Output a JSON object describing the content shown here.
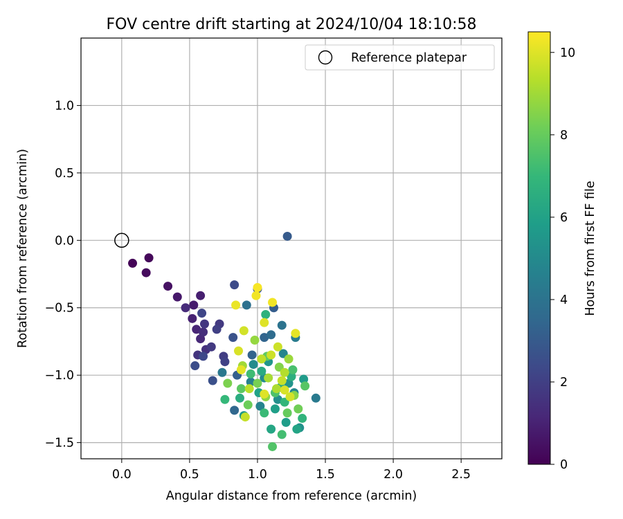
{
  "chart_data": {
    "type": "scatter",
    "title": "FOV centre drift starting at 2024/10/04 18:10:58",
    "xlabel": "Angular distance from reference (arcmin)",
    "ylabel": "Rotation from reference (arcmin)",
    "xlim": [
      -0.3,
      2.8
    ],
    "ylim": [
      -1.62,
      1.5
    ],
    "xticks": [
      0.0,
      0.5,
      1.0,
      1.5,
      2.0,
      2.5
    ],
    "xtick_labels": [
      "0.0",
      "0.5",
      "1.0",
      "1.5",
      "2.0",
      "2.5"
    ],
    "yticks": [
      1.0,
      0.5,
      0.0,
      -0.5,
      -1.0,
      -1.5
    ],
    "ytick_labels": [
      "1.0",
      "0.5",
      "0.0",
      "−0.5",
      "−1.0",
      "−1.5"
    ],
    "grid": true,
    "legend": {
      "placement": "top-right",
      "entries": [
        {
          "label": "Reference platepar",
          "marker": "open-circle"
        }
      ]
    },
    "reference_point": {
      "x": 0.0,
      "y": 0.0
    },
    "colorbar": {
      "label": "Hours from first FF file",
      "range": [
        0,
        10.5
      ],
      "ticks": [
        0,
        2,
        4,
        6,
        8,
        10
      ],
      "tick_labels": [
        "0",
        "2",
        "4",
        "6",
        "8",
        "10"
      ],
      "colormap": "viridis",
      "colors": [
        "#440154",
        "#482878",
        "#3e4989",
        "#31688e",
        "#26828e",
        "#1f9e89",
        "#35b779",
        "#6ece58",
        "#b5de2b",
        "#fde725"
      ]
    },
    "series": [
      {
        "points": [
          [
            0.08,
            -0.17,
            0.1
          ],
          [
            0.2,
            -0.13,
            0.2
          ],
          [
            0.18,
            -0.24,
            0.3
          ],
          [
            0.34,
            -0.34,
            0.5
          ],
          [
            0.41,
            -0.42,
            0.7
          ],
          [
            0.53,
            -0.48,
            0.8
          ],
          [
            0.58,
            -0.41,
            0.9
          ],
          [
            0.52,
            -0.58,
            1.0
          ],
          [
            0.55,
            -0.66,
            1.1
          ],
          [
            0.58,
            -0.73,
            1.2
          ],
          [
            0.47,
            -0.5,
            1.3
          ],
          [
            0.6,
            -0.68,
            1.4
          ],
          [
            0.62,
            -0.81,
            1.5
          ],
          [
            0.56,
            -0.85,
            1.6
          ],
          [
            0.61,
            -0.62,
            1.7
          ],
          [
            0.66,
            -0.79,
            1.8
          ],
          [
            0.72,
            -0.62,
            1.8
          ],
          [
            0.75,
            -0.86,
            1.9
          ],
          [
            0.7,
            -0.66,
            2.0
          ],
          [
            0.76,
            -0.9,
            2.1
          ],
          [
            0.59,
            -0.54,
            2.2
          ],
          [
            0.83,
            -0.33,
            2.4
          ],
          [
            0.54,
            -0.93,
            2.5
          ],
          [
            0.67,
            -1.04,
            2.6
          ],
          [
            0.82,
            -0.72,
            2.7
          ],
          [
            0.6,
            -0.86,
            2.3
          ],
          [
            1.0,
            -0.36,
            2.8
          ],
          [
            1.22,
            0.03,
            3.0
          ],
          [
            1.12,
            -0.5,
            3.1
          ],
          [
            0.85,
            -1.0,
            3.2
          ],
          [
            0.96,
            -0.85,
            3.3
          ],
          [
            1.05,
            -0.72,
            3.4
          ],
          [
            0.83,
            -1.26,
            3.5
          ],
          [
            1.1,
            -0.7,
            3.7
          ],
          [
            0.92,
            -0.48,
            3.9
          ],
          [
            1.18,
            -0.63,
            4.0
          ],
          [
            0.74,
            -0.98,
            4.2
          ],
          [
            1.43,
            -1.17,
            4.3
          ],
          [
            1.28,
            -0.72,
            4.4
          ],
          [
            0.95,
            -1.05,
            4.6
          ],
          [
            1.02,
            -1.23,
            4.7
          ],
          [
            1.19,
            -0.84,
            4.8
          ],
          [
            1.27,
            -1.13,
            4.9
          ],
          [
            1.05,
            -1.02,
            5.0
          ],
          [
            0.97,
            -0.92,
            5.1
          ],
          [
            1.15,
            -1.18,
            5.2
          ],
          [
            1.31,
            -1.39,
            5.3
          ],
          [
            1.23,
            -1.06,
            5.4
          ],
          [
            1.08,
            -0.9,
            5.5
          ],
          [
            0.9,
            -1.3,
            5.6
          ],
          [
            1.34,
            -1.03,
            5.7
          ],
          [
            1.21,
            -1.35,
            5.8
          ],
          [
            1.13,
            -1.25,
            5.9
          ],
          [
            1.01,
            -1.13,
            6.0
          ],
          [
            1.29,
            -1.4,
            6.1
          ],
          [
            1.1,
            -1.4,
            6.2
          ],
          [
            1.17,
            -1.09,
            6.3
          ],
          [
            1.03,
            -0.97,
            6.4
          ],
          [
            0.87,
            -1.17,
            6.5
          ],
          [
            1.25,
            -1.01,
            6.6
          ],
          [
            1.06,
            -0.55,
            6.7
          ],
          [
            1.33,
            -1.32,
            6.8
          ],
          [
            1.2,
            -1.2,
            6.9
          ],
          [
            0.76,
            -1.18,
            7.0
          ],
          [
            1.05,
            -1.28,
            7.1
          ],
          [
            0.95,
            -0.99,
            7.2
          ],
          [
            1.18,
            -1.44,
            7.3
          ],
          [
            1.26,
            -0.96,
            7.4
          ],
          [
            1.13,
            -1.13,
            7.5
          ],
          [
            1.11,
            -1.53,
            7.6
          ],
          [
            1.35,
            -1.08,
            7.7
          ],
          [
            0.88,
            -1.1,
            7.8
          ],
          [
            1.07,
            -0.86,
            7.9
          ],
          [
            1.22,
            -1.28,
            8.0
          ],
          [
            0.93,
            -1.22,
            8.1
          ],
          [
            1.3,
            -1.25,
            8.2
          ],
          [
            1.0,
            -1.06,
            8.3
          ],
          [
            0.78,
            -1.06,
            8.4
          ],
          [
            1.16,
            -0.94,
            8.5
          ],
          [
            1.27,
            -1.15,
            8.6
          ],
          [
            1.06,
            -1.16,
            8.7
          ],
          [
            0.98,
            -0.74,
            8.8
          ],
          [
            1.23,
            -0.88,
            8.9
          ],
          [
            0.89,
            -0.93,
            9.0
          ],
          [
            1.08,
            -1.02,
            9.1
          ],
          [
            1.14,
            -1.1,
            9.2
          ],
          [
            1.2,
            -0.98,
            9.3
          ],
          [
            0.94,
            -1.1,
            9.4
          ],
          [
            1.03,
            -0.88,
            9.5
          ],
          [
            1.18,
            -1.04,
            9.6
          ],
          [
            0.91,
            -1.31,
            9.6
          ],
          [
            1.1,
            -0.85,
            9.7
          ],
          [
            1.24,
            -1.16,
            9.8
          ],
          [
            0.86,
            -0.82,
            9.9
          ],
          [
            1.05,
            -1.14,
            10.0
          ],
          [
            1.28,
            -0.69,
            10.1
          ],
          [
            0.84,
            -0.48,
            10.2
          ],
          [
            0.99,
            -0.41,
            10.3
          ],
          [
            1.11,
            -0.46,
            10.3
          ],
          [
            1.0,
            -0.35,
            10.4
          ],
          [
            0.9,
            -0.67,
            9.8
          ],
          [
            1.15,
            -0.79,
            9.7
          ],
          [
            1.05,
            -0.61,
            10.0
          ],
          [
            0.88,
            -0.96,
            10.1
          ],
          [
            1.2,
            -1.11,
            9.9
          ]
        ]
      }
    ]
  }
}
